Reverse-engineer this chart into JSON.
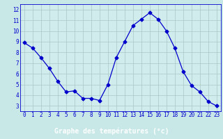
{
  "x": [
    0,
    1,
    2,
    3,
    4,
    5,
    6,
    7,
    8,
    9,
    10,
    11,
    12,
    13,
    14,
    15,
    16,
    17,
    18,
    19,
    20,
    21,
    22,
    23
  ],
  "y": [
    8.9,
    8.4,
    7.5,
    6.5,
    5.3,
    4.3,
    4.4,
    3.7,
    3.7,
    3.5,
    5.0,
    7.5,
    9.0,
    10.5,
    11.1,
    11.7,
    11.1,
    10.0,
    8.4,
    6.2,
    4.9,
    4.3,
    3.4,
    3.0
  ],
  "xlabel": "Graphe des températures (°c)",
  "bg_color": "#c8e8e8",
  "line_color": "#0000cc",
  "grid_color": "#a8c8c8",
  "axis_bg": "#d0ecec",
  "bar_color": "#0000aa",
  "bar_text_color": "#ffffff",
  "ylim": [
    2.5,
    12.5
  ],
  "xlim": [
    -0.5,
    23.5
  ],
  "yticks": [
    3,
    4,
    5,
    6,
    7,
    8,
    9,
    10,
    11,
    12
  ],
  "xticks": [
    0,
    1,
    2,
    3,
    4,
    5,
    6,
    7,
    8,
    9,
    10,
    11,
    12,
    13,
    14,
    15,
    16,
    17,
    18,
    19,
    20,
    21,
    22,
    23
  ],
  "xtick_labels": [
    "0",
    "1",
    "2",
    "3",
    "4",
    "5",
    "6",
    "7",
    "8",
    "9",
    "10",
    "11",
    "12",
    "13",
    "14",
    "15",
    "16",
    "17",
    "18",
    "19",
    "20",
    "21",
    "22",
    "23"
  ],
  "tick_fontsize": 5.5,
  "xlabel_fontsize": 7,
  "marker_size": 2.5
}
